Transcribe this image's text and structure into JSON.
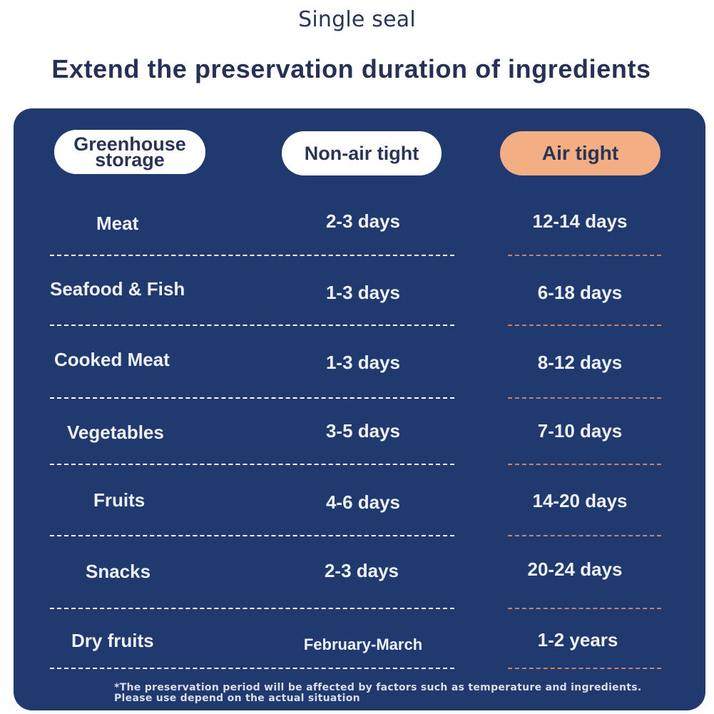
{
  "header": {
    "subtitle": "Single seal",
    "title": "Extend the preservation duration of ingredients"
  },
  "table": {
    "headers": {
      "greenhouse_line1": "Greenhouse",
      "greenhouse_line2": "storage",
      "non_air_tight": "Non-air tight",
      "air_tight": "Air tight"
    },
    "rows": [
      {
        "item": "Meat",
        "non_air": "2-3 days",
        "air": "12-14 days"
      },
      {
        "item": "Seafood & Fish",
        "non_air": "1-3 days",
        "air": "6-18 days"
      },
      {
        "item": "Cooked Meat",
        "non_air": "1-3 days",
        "air": "8-12 days"
      },
      {
        "item": "Vegetables",
        "non_air": "3-5 days",
        "air": "7-10 days"
      },
      {
        "item": "Fruits",
        "non_air": "4-6 days",
        "air": "14-20 days"
      },
      {
        "item": "Snacks",
        "non_air": "2-3 days",
        "air": "20-24 days"
      },
      {
        "item": "Dry fruits",
        "non_air": "February-March",
        "air": "1-2 years"
      }
    ]
  },
  "footnote": {
    "line1": "*The preservation period will be affected by factors such as temperature and ingredients.",
    "line2": "Please use depend on the actual situation"
  },
  "colors": {
    "panel": "#203a70",
    "accent": "#f3ae83",
    "title": "#263154"
  }
}
